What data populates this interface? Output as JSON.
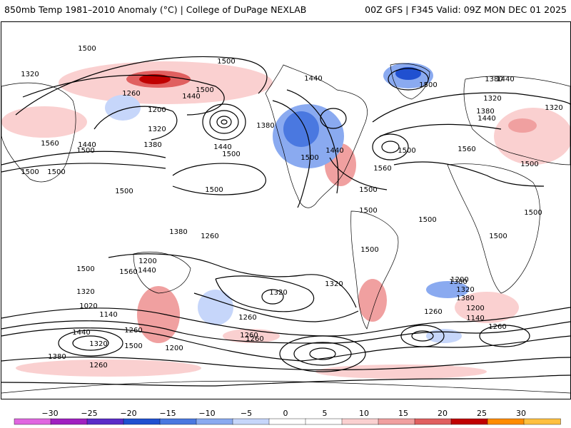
{
  "header": {
    "left_title": "850mb Temp 1981–2010 Anomaly (°C) | College of DuPage NEXLAB",
    "right_title": "00Z GFS | F345 Valid: 09Z MON DEC 01 2025"
  },
  "colorbar": {
    "ticks": [
      "−30",
      "−25",
      "−20",
      "−15",
      "−10",
      "−5",
      "0",
      "5",
      "10",
      "15",
      "20",
      "25",
      "30"
    ],
    "colors": [
      "#e066e0",
      "#a020c0",
      "#5a2cc8",
      "#2050d0",
      "#4a78e0",
      "#8aaaf0",
      "#c6d6fa",
      "#ffffff",
      "#ffffff",
      "#fad0d0",
      "#f0a0a0",
      "#e06060",
      "#c00000",
      "#ff8c00",
      "#ffc040"
    ]
  },
  "map": {
    "contour_labels": [
      {
        "v": "1500"
      },
      {
        "v": "1500"
      },
      {
        "v": "1320"
      },
      {
        "v": "1260"
      },
      {
        "v": "1440"
      },
      {
        "v": "1500"
      },
      {
        "v": "1200"
      },
      {
        "v": "1320"
      },
      {
        "v": "1380"
      },
      {
        "v": "1440"
      },
      {
        "v": "1500"
      },
      {
        "v": "1380"
      },
      {
        "v": "1560"
      },
      {
        "v": "1440"
      },
      {
        "v": "1500"
      },
      {
        "v": "1500"
      },
      {
        "v": "1500"
      },
      {
        "v": "1500"
      },
      {
        "v": "1500"
      },
      {
        "v": "1440"
      },
      {
        "v": "1500"
      },
      {
        "v": "1440"
      },
      {
        "v": "1560"
      },
      {
        "v": "1500"
      },
      {
        "v": "1500"
      },
      {
        "v": "1380"
      },
      {
        "v": "1320"
      },
      {
        "v": "1380"
      },
      {
        "v": "1440"
      },
      {
        "v": "1560"
      },
      {
        "v": "1500"
      },
      {
        "v": "1500"
      },
      {
        "v": "1500"
      },
      {
        "v": "1500"
      },
      {
        "v": "1500"
      },
      {
        "v": "1500"
      },
      {
        "v": "1500"
      },
      {
        "v": "1500"
      },
      {
        "v": "1440"
      },
      {
        "v": "1380"
      },
      {
        "v": "1260"
      },
      {
        "v": "1200"
      },
      {
        "v": "1320"
      },
      {
        "v": "1380"
      },
      {
        "v": "1260"
      },
      {
        "v": "1200"
      },
      {
        "v": "1140"
      },
      {
        "v": "1260"
      },
      {
        "v": "1320"
      },
      {
        "v": "1440"
      },
      {
        "v": "1320"
      },
      {
        "v": "1560"
      },
      {
        "v": "1380"
      },
      {
        "v": "1200"
      },
      {
        "v": "1020"
      },
      {
        "v": "1140"
      },
      {
        "v": "1260"
      },
      {
        "v": "1500"
      },
      {
        "v": "1440"
      },
      {
        "v": "1380"
      },
      {
        "v": "1320"
      },
      {
        "v": "1260"
      },
      {
        "v": "1200"
      },
      {
        "v": "1260"
      },
      {
        "v": "1260"
      },
      {
        "v": "1260"
      },
      {
        "v": "1320"
      },
      {
        "v": "1320"
      }
    ]
  }
}
